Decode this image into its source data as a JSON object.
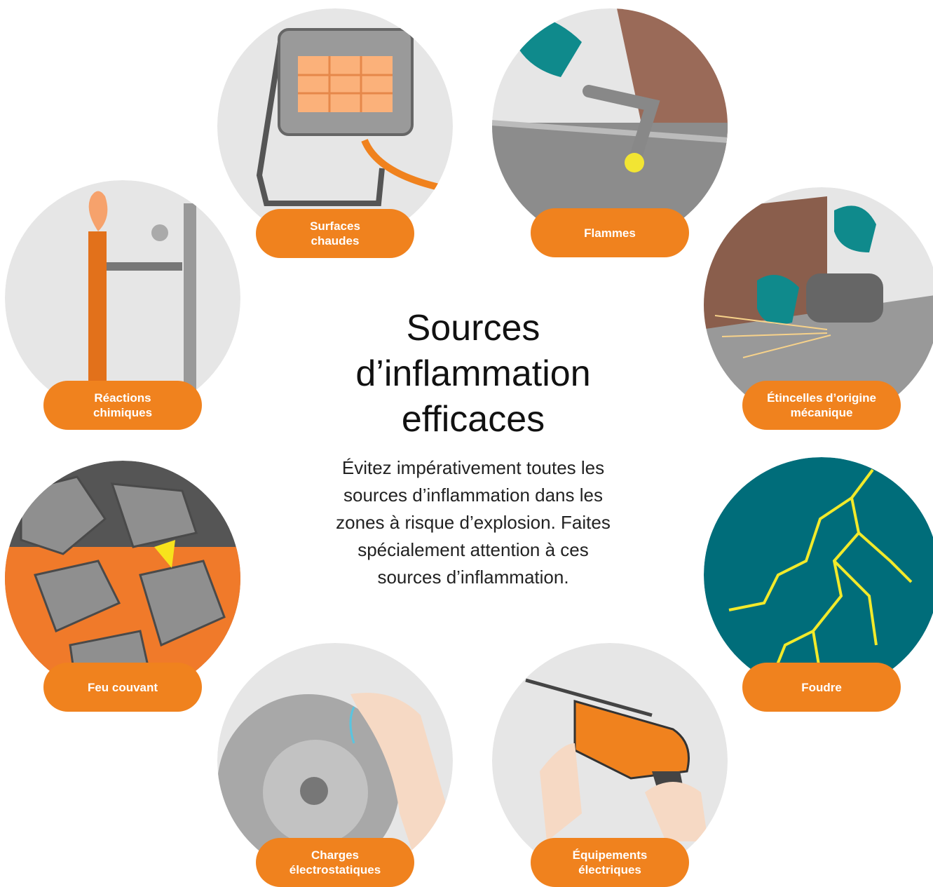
{
  "header": {
    "title_lines": [
      "Sources",
      "d’inflammation",
      "efficaces"
    ],
    "intro_lines": [
      "Évitez impérativement toutes les",
      "sources d’inflammation dans les",
      "zones à risque d’explosion. Faites",
      "spécialement attention à ces",
      "sources d’inflammation."
    ]
  },
  "sources": [
    {
      "label_lines": [
        "Surfaces",
        "chaudes"
      ]
    },
    {
      "label_lines": [
        "Flammes"
      ]
    },
    {
      "label_lines": [
        "Réactions",
        "chimiques"
      ]
    },
    {
      "label_lines": [
        "Étincelles d’origine",
        "mécanique"
      ]
    },
    {
      "label_lines": [
        "Feu couvant"
      ]
    },
    {
      "label_lines": [
        "Foudre"
      ]
    },
    {
      "label_lines": [
        "Charges",
        "électrostatiques"
      ]
    },
    {
      "label_lines": [
        "Équipements",
        "électriques"
      ]
    }
  ]
}
